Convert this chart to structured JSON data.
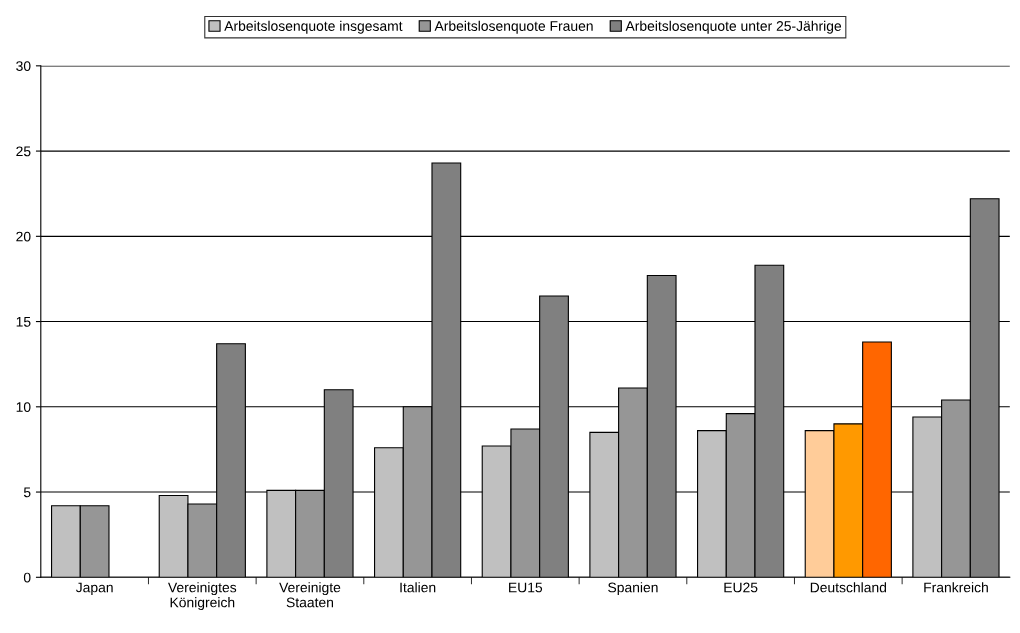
{
  "chart_data": {
    "type": "bar",
    "categories": [
      "Japan",
      "Vereinigtes\nKönigreich",
      "Vereinigte\nStaaten",
      "Italien",
      "EU15",
      "Spanien",
      "EU25",
      "Deutschland",
      "Frankreich"
    ],
    "series": [
      {
        "name": "Arbeitslosenquote insgesamt",
        "color": "#c0c0c0",
        "colors": [
          "#c0c0c0",
          "#c0c0c0",
          "#c0c0c0",
          "#c0c0c0",
          "#c0c0c0",
          "#c0c0c0",
          "#c0c0c0",
          "#ffcc99",
          "#c0c0c0"
        ],
        "values": [
          4.2,
          4.8,
          5.1,
          7.6,
          7.7,
          8.5,
          8.6,
          8.6,
          9.4
        ]
      },
      {
        "name": "Arbeitslosenquote Frauen",
        "color": "#969696",
        "colors": [
          "#969696",
          "#969696",
          "#969696",
          "#969696",
          "#969696",
          "#969696",
          "#969696",
          "#ff9900",
          "#969696"
        ],
        "values": [
          4.2,
          4.3,
          5.1,
          10.0,
          8.7,
          11.1,
          9.6,
          9.0,
          10.4
        ]
      },
      {
        "name": "Arbeitslosenquote unter 25-Jährige",
        "color": "#808080",
        "colors": [
          "#808080",
          "#808080",
          "#808080",
          "#808080",
          "#808080",
          "#808080",
          "#808080",
          "#ff6600",
          "#808080"
        ],
        "values": [
          null,
          13.7,
          11.0,
          24.3,
          16.5,
          17.7,
          18.3,
          13.8,
          22.2
        ]
      }
    ],
    "ylim": [
      0,
      30
    ],
    "yticks": [
      0,
      5,
      10,
      15,
      20,
      25,
      30
    ],
    "grid": "y",
    "legend": "top"
  }
}
